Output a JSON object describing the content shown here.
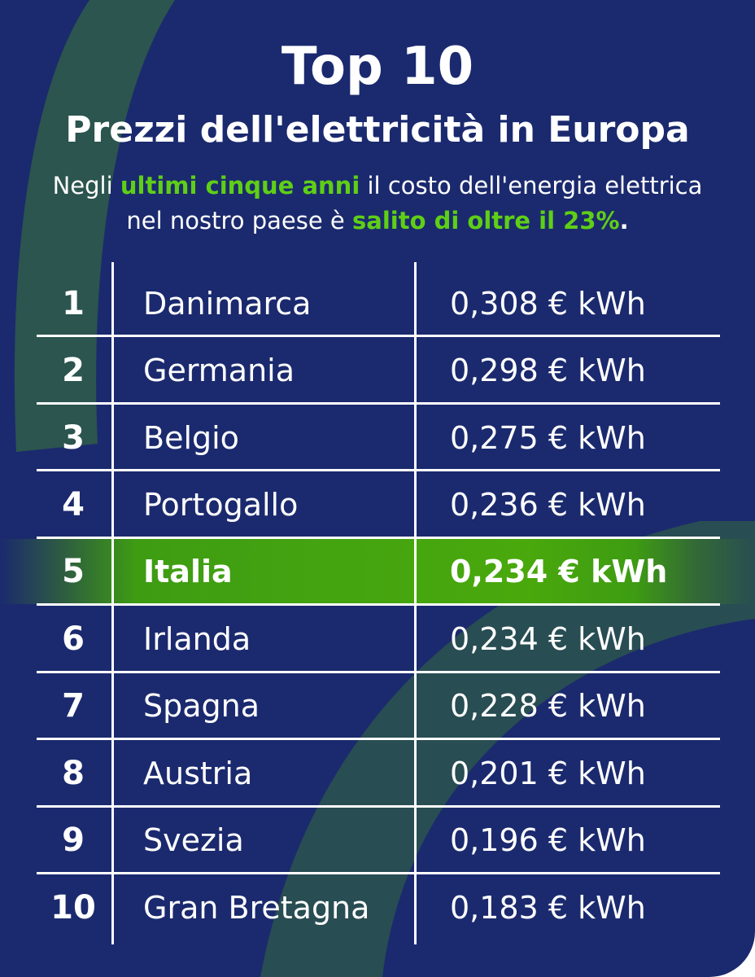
{
  "header": {
    "title": "Top 10",
    "subtitle": "Prezzi dell'elettricità in Europa"
  },
  "intro": {
    "line1_part1": "Negli ",
    "line1_highlight": "ultimi cinque anni",
    "line1_part2": " il costo dell'energia elettrica",
    "line2_part1": "nel nostro paese è ",
    "line2_highlight": "salito di oltre il 23%",
    "line2_end": "."
  },
  "colors": {
    "background": "#1b2a6e",
    "highlight_green": "#5fcf16",
    "row_highlight": "#44a410",
    "text": "#ffffff"
  },
  "ranking": [
    {
      "rank": "1",
      "country": "Danimarca",
      "price": "0,308 € kWh",
      "highlight": false
    },
    {
      "rank": "2",
      "country": "Germania",
      "price": "0,298 € kWh",
      "highlight": false
    },
    {
      "rank": "3",
      "country": "Belgio",
      "price": "0,275 € kWh",
      "highlight": false
    },
    {
      "rank": "4",
      "country": "Portogallo",
      "price": "0,236 € kWh",
      "highlight": false
    },
    {
      "rank": "5",
      "country": "Italia",
      "price": "0,234 € kWh",
      "highlight": true
    },
    {
      "rank": "6",
      "country": "Irlanda",
      "price": "0,234 € kWh",
      "highlight": false
    },
    {
      "rank": "7",
      "country": "Spagna",
      "price": "0,228 € kWh",
      "highlight": false
    },
    {
      "rank": "8",
      "country": "Austria",
      "price": "0,201 € kWh",
      "highlight": false
    },
    {
      "rank": "9",
      "country": "Svezia",
      "price": "0,196 € kWh",
      "highlight": false
    },
    {
      "rank": "10",
      "country": "Gran Bretagna",
      "price": "0,183 € kWh",
      "highlight": false
    }
  ]
}
